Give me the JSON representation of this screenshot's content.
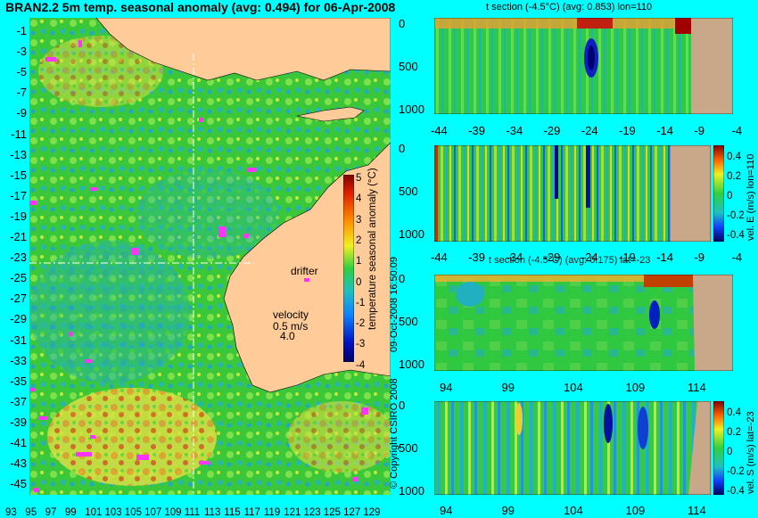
{
  "main_title": "BRAN2.2 5m temp. seasonal anomaly (avg: 0.494) for 06-Apr-2008",
  "map": {
    "lat_ticks": [
      "-1",
      "-3",
      "-5",
      "-7",
      "-9",
      "-11",
      "-13",
      "-15",
      "-17",
      "-19",
      "-21",
      "-23",
      "-25",
      "-27",
      "-29",
      "-31",
      "-33",
      "-35",
      "-37",
      "-39",
      "-41",
      "-43",
      "-45"
    ],
    "lon_ticks": [
      "93",
      "95",
      "97",
      "99",
      "101",
      "103",
      "105",
      "107",
      "109",
      "111",
      "113",
      "115",
      "117",
      "119",
      "121",
      "123",
      "125",
      "127",
      "129"
    ],
    "drifter_label": "drifter",
    "velocity_label": "velocity",
    "velocity_scale": "0.5 m/s",
    "velocity_value": "4.0",
    "section_lines": {
      "lon": 110,
      "lat": -23
    },
    "colors": {
      "ocean": "#28c840",
      "land": "#ffcc99",
      "drifter": "#ff33ff"
    }
  },
  "colorbar_main": {
    "label": "temperature seasonal anomaly (°C)",
    "ticks": [
      "5",
      "4",
      "3",
      "2",
      "1",
      "0",
      "-1",
      "-2",
      "-3",
      "-4"
    ]
  },
  "side_text": {
    "timestamp": "09-Oct-2008 16:50:09",
    "copyright": "© Copyright CSIRO 2008"
  },
  "panel1": {
    "title": "t section (-4.5°C) (avg: 0.853) lon=110",
    "y_ticks": [
      "0",
      "500",
      "1000"
    ],
    "x_ticks": [
      "-44",
      "-39",
      "-34",
      "-29",
      "-24",
      "-19",
      "-14",
      "-9",
      "-4"
    ]
  },
  "panel2": {
    "y_ticks": [
      "0",
      "500",
      "1000"
    ],
    "x_ticks": [
      "-44",
      "-39",
      "-34",
      "-29",
      "-24",
      "-19",
      "-14",
      "-9",
      "-4"
    ],
    "cbar_label": "vel. E (m/s) lon=110",
    "cbar_ticks": [
      "0.4",
      "0.2",
      "0",
      "-0.2",
      "-0.4"
    ]
  },
  "panel3": {
    "title": "t section (-4.5°C) (avg: 0.175) lat=-23",
    "y_ticks": [
      "0",
      "500",
      "1000"
    ],
    "x_ticks": [
      "94",
      "99",
      "104",
      "109",
      "114"
    ]
  },
  "panel4": {
    "y_ticks": [
      "0",
      "500",
      "1000"
    ],
    "x_ticks": [
      "94",
      "99",
      "104",
      "109",
      "114"
    ],
    "cbar_label": "vel. S (m/s) lat=-23",
    "cbar_ticks": [
      "0.4",
      "0.2",
      "0",
      "-0.2",
      "-0.4"
    ]
  }
}
